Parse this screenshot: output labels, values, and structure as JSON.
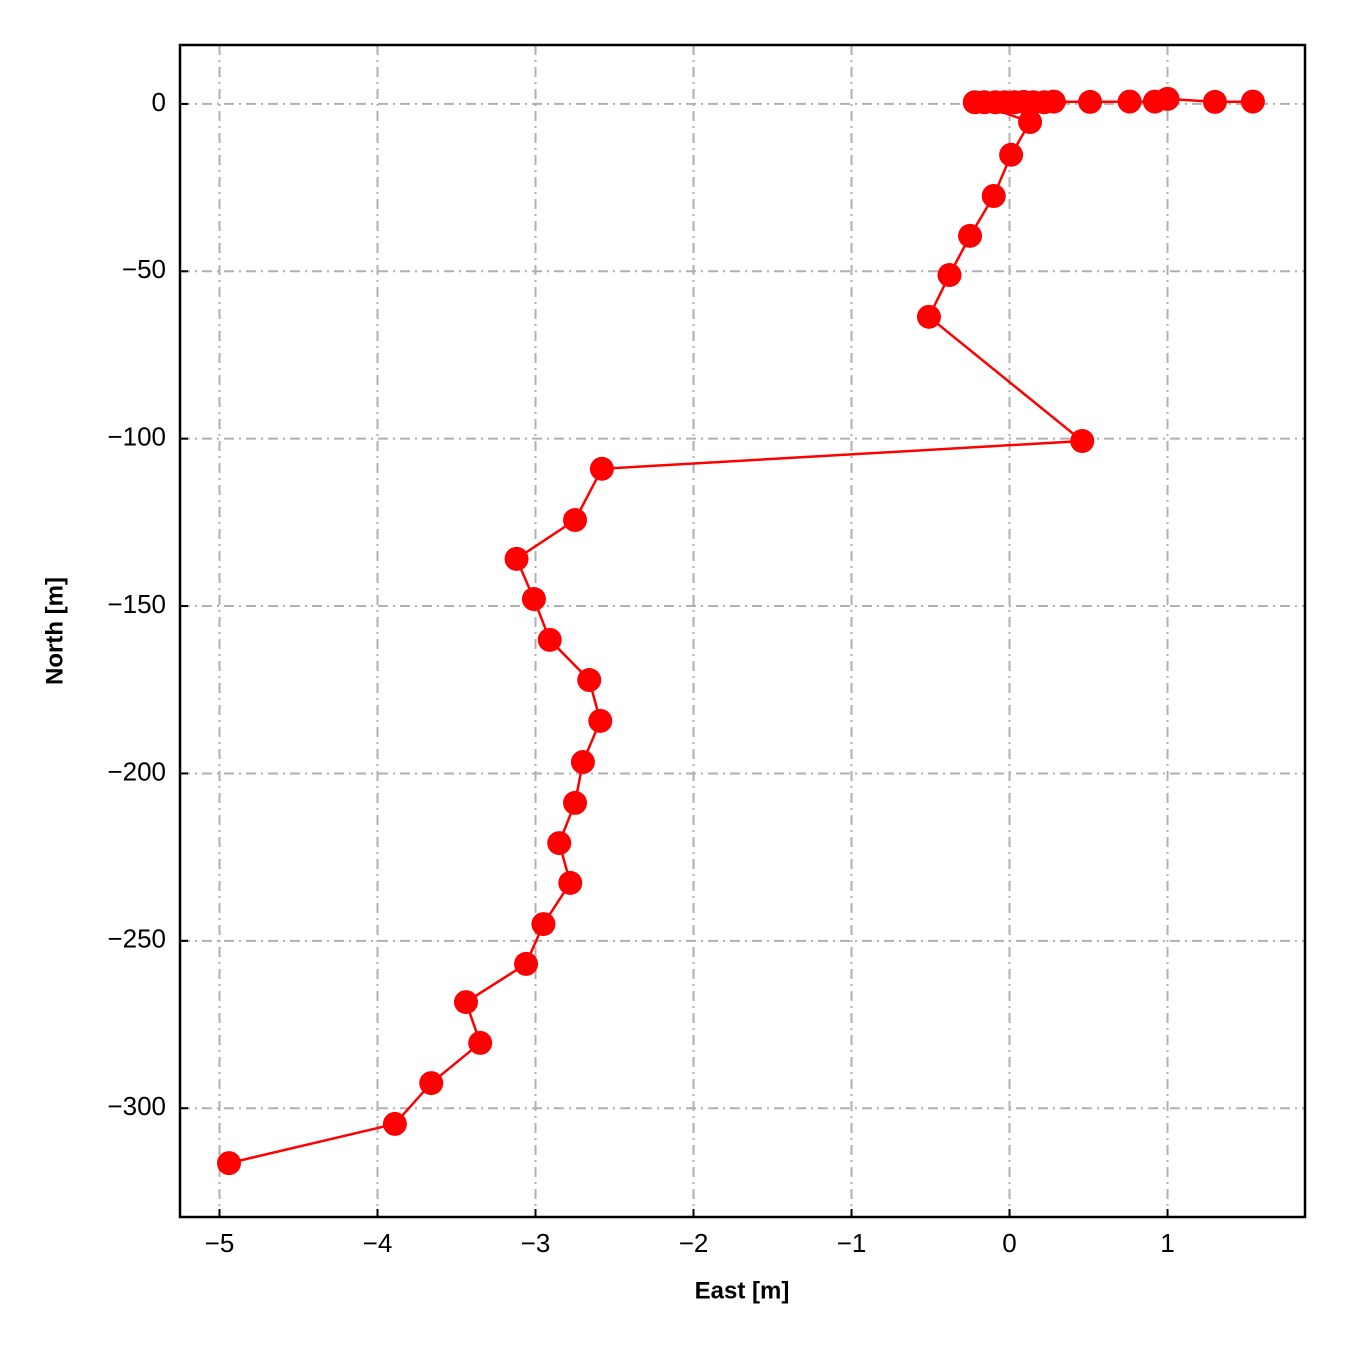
{
  "chart_data": {
    "type": "line",
    "xlabel": "East [m]",
    "ylabel": "North [m]",
    "xlim": [
      -5.25,
      1.87
    ],
    "ylim": [
      -332.5,
      17.6
    ],
    "xticks": [
      {
        "value": -5,
        "label": "−5"
      },
      {
        "value": -4,
        "label": "−4"
      },
      {
        "value": -3,
        "label": "−3"
      },
      {
        "value": -2,
        "label": "−2"
      },
      {
        "value": -1,
        "label": "−1"
      },
      0,
      1
    ],
    "yticks": [
      0,
      {
        "value": -50,
        "label": "−50"
      },
      {
        "value": -100,
        "label": "−100"
      },
      {
        "value": -150,
        "label": "−150"
      },
      {
        "value": -200,
        "label": "−200"
      },
      {
        "value": -250,
        "label": "−250"
      },
      {
        "value": -300,
        "label": "−300"
      }
    ],
    "grid": true,
    "series": [
      {
        "color": "#ff0000",
        "x": [
          -4.94,
          -3.89,
          -3.66,
          -3.35,
          -3.44,
          -3.06,
          -2.95,
          -2.78,
          -2.85,
          -2.75,
          -2.7,
          -2.59,
          -2.66,
          -2.91,
          -3.01,
          -3.12,
          -2.75,
          -2.58,
          0.46,
          -0.51,
          -0.38,
          -0.25,
          -0.1,
          0.01,
          0.13,
          -0.22,
          -0.16,
          -0.09,
          -0.03,
          0.03,
          0.09,
          0.15,
          0.22,
          0.28,
          0.51,
          0.76,
          0.92,
          1.0,
          1.3,
          1.54
        ],
        "values": [
          -316.4,
          -304.7,
          -292.5,
          -280.5,
          -268.3,
          -256.9,
          -245.0,
          -232.7,
          -220.8,
          -208.8,
          -196.6,
          -184.3,
          -172.1,
          -160.1,
          -147.9,
          -135.9,
          -124.3,
          -109.0,
          -100.7,
          -63.6,
          -51.1,
          -39.4,
          -27.5,
          -15.2,
          -5.4,
          0.5,
          0.5,
          0.5,
          0.5,
          0.5,
          0.6,
          0.5,
          0.5,
          0.7,
          0.6,
          0.7,
          0.7,
          1.5,
          0.6,
          0.7
        ]
      }
    ]
  }
}
